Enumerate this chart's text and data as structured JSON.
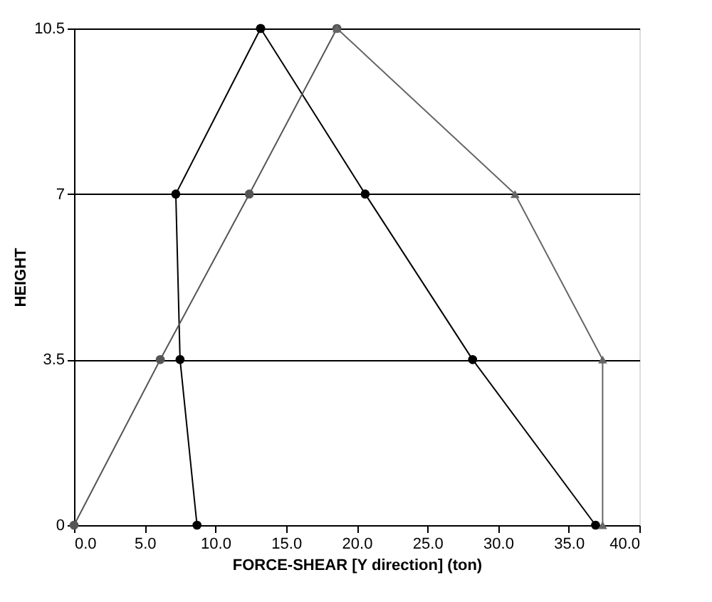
{
  "chart_data": {
    "type": "line",
    "xlabel": "FORCE-SHEAR [Y direction] (ton)",
    "ylabel": "HEIGHT",
    "xlim": [
      0,
      40
    ],
    "xticks": [
      {
        "value": 0,
        "label": "0.0"
      },
      {
        "value": 5,
        "label": "5.0"
      },
      {
        "value": 10,
        "label": "10.0"
      },
      {
        "value": 15,
        "label": "15.0"
      },
      {
        "value": 20,
        "label": "20.0"
      },
      {
        "value": 25,
        "label": "25.0"
      },
      {
        "value": 30,
        "label": "30.0"
      },
      {
        "value": 35,
        "label": "35.0"
      },
      {
        "value": 40,
        "label": "40.0"
      }
    ],
    "ylim": [
      0,
      10.5
    ],
    "yticks": [
      0,
      3.5,
      7,
      10.5
    ],
    "grid": "y",
    "series": [
      {
        "color": "#000000",
        "marker": "circle",
        "x": [
          8.7,
          7.5,
          7.2,
          13.2
        ],
        "values": [
          0,
          3.5,
          7,
          10.5
        ]
      },
      {
        "color": "#000000",
        "marker": "circle",
        "x": [
          36.9,
          28.2,
          20.6,
          13.2
        ],
        "values": [
          0,
          3.5,
          7,
          10.5
        ]
      },
      {
        "color": "#555555",
        "marker": "circle",
        "x": [
          0,
          6.1,
          12.4,
          18.6
        ],
        "values": [
          0,
          3.5,
          7,
          10.5
        ]
      },
      {
        "color": "#666666",
        "marker": "triangle",
        "x": [
          37.4,
          37.4,
          31.2,
          18.6
        ],
        "values": [
          0,
          3.5,
          7,
          10.5
        ]
      }
    ]
  }
}
